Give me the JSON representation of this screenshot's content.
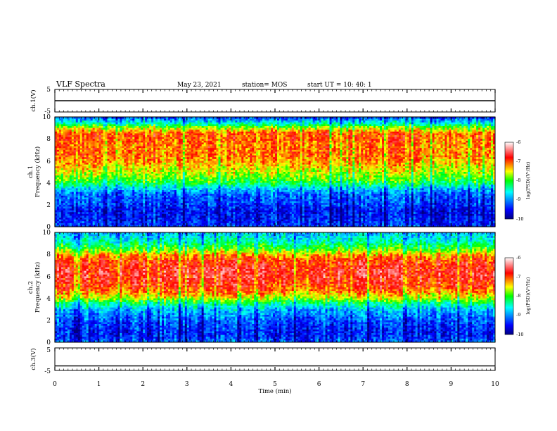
{
  "chart_data": {
    "type": "heatmap",
    "title": "VLF Spectra",
    "date": "May 23, 2021",
    "station": "station= MOS",
    "start": "start  UT =   10: 40: 1",
    "xlabel": "Time  (min)",
    "x_ticks": [
      "0",
      "1",
      "2",
      "3",
      "4",
      "5",
      "6",
      "7",
      "8",
      "9",
      "10"
    ],
    "xlim": [
      0,
      10
    ],
    "panels": [
      {
        "id": "ch1-volt",
        "type": "line",
        "ylabel": "ch.1(V)",
        "ylim": [
          -5,
          5
        ],
        "y_ticks": [
          "5",
          "-5"
        ],
        "trace_level": 0
      },
      {
        "id": "ch1-spec",
        "type": "heatmap",
        "ylabel": "ch.1\nFrequency  (kHz)",
        "ylabel_line1": "ch.1",
        "ylabel_line2": "Frequency  (kHz)",
        "ylim": [
          0,
          10
        ],
        "y_ticks": [
          "0",
          "2",
          "4",
          "6",
          "8",
          "10"
        ],
        "profile": {
          "freq_khz": [
            0,
            0.5,
            1,
            1.5,
            2,
            2.5,
            3,
            3.5,
            4,
            4.5,
            5,
            5.5,
            6,
            6.5,
            7,
            7.5,
            8,
            8.5,
            9,
            9.5,
            10
          ],
          "log_psd": [
            -9.3,
            -9.4,
            -9.5,
            -9.5,
            -9.3,
            -9.2,
            -9.1,
            -8.7,
            -8.1,
            -7.8,
            -7.6,
            -7.4,
            -7.2,
            -7.1,
            -7.1,
            -7.1,
            -7.0,
            -7.0,
            -7.7,
            -8.6,
            -9.3
          ]
        },
        "colorbar": {
          "label": "log(PSD)(V²/Hz)",
          "range": [
            -10,
            -6
          ],
          "ticks": [
            "-6",
            "-7",
            "-8",
            "-9",
            "-10"
          ]
        }
      },
      {
        "id": "ch2-spec",
        "type": "heatmap",
        "ylabel": "ch.2\nFrequency  (kHz)",
        "ylabel_line1": "ch.2",
        "ylabel_line2": "Frequency  (kHz)",
        "ylim": [
          0,
          10
        ],
        "y_ticks": [
          "0",
          "2",
          "4",
          "6",
          "8",
          "10"
        ],
        "profile": {
          "freq_khz": [
            0,
            0.5,
            1,
            1.5,
            2,
            2.5,
            3,
            3.5,
            4,
            4.5,
            5,
            5.5,
            6,
            6.5,
            7,
            7.5,
            8,
            8.5,
            9,
            9.5,
            10
          ],
          "log_psd": [
            -9.1,
            -9.4,
            -9.4,
            -9.3,
            -9.2,
            -9.0,
            -8.8,
            -8.3,
            -7.6,
            -7.2,
            -6.9,
            -6.8,
            -6.7,
            -6.7,
            -6.8,
            -6.9,
            -7.3,
            -7.9,
            -8.3,
            -8.6,
            -8.8
          ]
        },
        "colorbar": {
          "label": "log(PSD)(V²/Hz)",
          "range": [
            -10,
            -6
          ],
          "ticks": [
            "-6",
            "-7",
            "-8",
            "-9",
            "-10"
          ]
        }
      },
      {
        "id": "ch3-volt",
        "type": "line",
        "ylabel": "ch.3(V)",
        "ylim": [
          -5,
          5
        ],
        "y_ticks": [
          "5",
          "-5"
        ],
        "trace_level": -3
      }
    ],
    "colormap": [
      "#000080",
      "#0000ff",
      "#00ffff",
      "#00ff00",
      "#ffff00",
      "#ff0000",
      "#ffffff"
    ]
  }
}
